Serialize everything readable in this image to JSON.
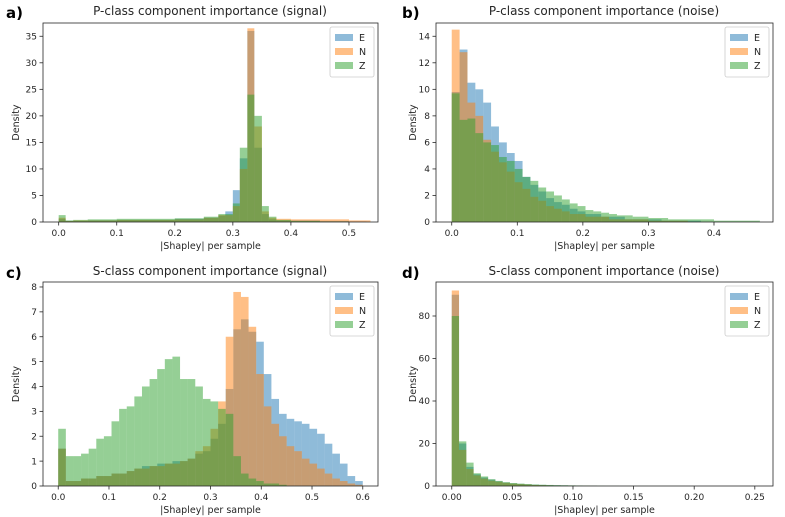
{
  "colors": {
    "E": "#1f77b4",
    "N": "#ff7f0e",
    "Z": "#2ca02c"
  },
  "chart_data": [
    {
      "type": "histogram",
      "panel_label": "a)",
      "title": "P-class component importance (signal)",
      "xlabel": "|Shapley| per sample",
      "ylabel": "Density",
      "xlim": [
        -0.027,
        0.55
      ],
      "ylim": [
        0,
        37.5
      ],
      "xticks": [
        0.0,
        0.1,
        0.2,
        0.3,
        0.4,
        0.5
      ],
      "xtick_labels": [
        "0.0",
        "0.1",
        "0.2",
        "0.3",
        "0.4",
        "0.5"
      ],
      "yticks": [
        0,
        5,
        10,
        15,
        20,
        25,
        30,
        35
      ],
      "ytick_labels": [
        "0",
        "5",
        "10",
        "15",
        "20",
        "25",
        "30",
        "35"
      ],
      "legend": {
        "position": "top-right",
        "entries": [
          "E",
          "N",
          "Z"
        ]
      },
      "series": [
        {
          "name": "E",
          "bins": [
            [
              0.0,
              0.012,
              0.6
            ],
            [
              0.012,
              0.025,
              0.2
            ],
            [
              0.025,
              0.05,
              0.2
            ],
            [
              0.05,
              0.1,
              0.3
            ],
            [
              0.1,
              0.2,
              0.4
            ],
            [
              0.2,
              0.25,
              0.6
            ],
            [
              0.25,
              0.275,
              0.8
            ],
            [
              0.275,
              0.287,
              1.2
            ],
            [
              0.287,
              0.3,
              2.0
            ],
            [
              0.3,
              0.312,
              6.0
            ],
            [
              0.312,
              0.325,
              12.0
            ],
            [
              0.325,
              0.337,
              36.0
            ],
            [
              0.337,
              0.35,
              14.0
            ],
            [
              0.35,
              0.362,
              1.5
            ],
            [
              0.362,
              0.375,
              0.5
            ],
            [
              0.375,
              0.4,
              0.3
            ],
            [
              0.4,
              0.45,
              0.3
            ],
            [
              0.45,
              0.5,
              0.2
            ],
            [
              0.5,
              0.53,
              0.1
            ]
          ]
        },
        {
          "name": "N",
          "bins": [
            [
              0.0,
              0.012,
              0.8
            ],
            [
              0.012,
              0.025,
              0.2
            ],
            [
              0.025,
              0.1,
              0.3
            ],
            [
              0.1,
              0.2,
              0.4
            ],
            [
              0.2,
              0.25,
              0.5
            ],
            [
              0.25,
              0.275,
              0.8
            ],
            [
              0.275,
              0.3,
              1.3
            ],
            [
              0.3,
              0.312,
              3.0
            ],
            [
              0.312,
              0.325,
              10.0
            ],
            [
              0.325,
              0.337,
              36.5
            ],
            [
              0.337,
              0.35,
              18.0
            ],
            [
              0.35,
              0.362,
              2.0
            ],
            [
              0.362,
              0.375,
              0.8
            ],
            [
              0.375,
              0.4,
              0.6
            ],
            [
              0.4,
              0.45,
              0.5
            ],
            [
              0.45,
              0.5,
              0.5
            ],
            [
              0.5,
              0.537,
              0.3
            ]
          ]
        },
        {
          "name": "Z",
          "bins": [
            [
              0.0,
              0.012,
              1.3
            ],
            [
              0.012,
              0.025,
              0.3
            ],
            [
              0.025,
              0.05,
              0.4
            ],
            [
              0.05,
              0.1,
              0.5
            ],
            [
              0.1,
              0.2,
              0.6
            ],
            [
              0.2,
              0.25,
              0.7
            ],
            [
              0.25,
              0.275,
              1.0
            ],
            [
              0.275,
              0.3,
              1.5
            ],
            [
              0.3,
              0.312,
              3.5
            ],
            [
              0.312,
              0.325,
              14.0
            ],
            [
              0.325,
              0.337,
              24.0
            ],
            [
              0.337,
              0.35,
              20.0
            ],
            [
              0.35,
              0.362,
              3.0
            ],
            [
              0.362,
              0.375,
              1.0
            ],
            [
              0.375,
              0.4,
              0.4
            ],
            [
              0.4,
              0.45,
              0.2
            ],
            [
              0.45,
              0.5,
              0.1
            ]
          ]
        }
      ]
    },
    {
      "type": "histogram",
      "panel_label": "b)",
      "title": "P-class component importance (noise)",
      "xlabel": "|Shapley| per sample",
      "ylabel": "Density",
      "xlim": [
        -0.024,
        0.49
      ],
      "ylim": [
        0,
        15.0
      ],
      "xticks": [
        0.0,
        0.1,
        0.2,
        0.3,
        0.4
      ],
      "xtick_labels": [
        "0.0",
        "0.1",
        "0.2",
        "0.3",
        "0.4"
      ],
      "yticks": [
        0,
        2,
        4,
        6,
        8,
        10,
        12,
        14
      ],
      "ytick_labels": [
        "0",
        "2",
        "4",
        "6",
        "8",
        "10",
        "12",
        "14"
      ],
      "legend": {
        "position": "top-right",
        "entries": [
          "E",
          "N",
          "Z"
        ]
      },
      "series": [
        {
          "name": "E",
          "bins": [
            [
              0.0,
              0.012,
              9.8
            ],
            [
              0.012,
              0.024,
              13.0
            ],
            [
              0.024,
              0.036,
              10.5
            ],
            [
              0.036,
              0.048,
              10.0
            ],
            [
              0.048,
              0.06,
              9.0
            ],
            [
              0.06,
              0.072,
              7.2
            ],
            [
              0.072,
              0.084,
              6.0
            ],
            [
              0.084,
              0.096,
              5.2
            ],
            [
              0.096,
              0.108,
              4.6
            ],
            [
              0.108,
              0.12,
              3.4
            ],
            [
              0.12,
              0.132,
              2.8
            ],
            [
              0.132,
              0.144,
              2.3
            ],
            [
              0.144,
              0.156,
              1.8
            ],
            [
              0.156,
              0.168,
              1.5
            ],
            [
              0.168,
              0.18,
              1.3
            ],
            [
              0.18,
              0.192,
              1.0
            ],
            [
              0.192,
              0.204,
              0.8
            ],
            [
              0.204,
              0.228,
              0.6
            ],
            [
              0.228,
              0.264,
              0.4
            ],
            [
              0.264,
              0.32,
              0.2
            ],
            [
              0.32,
              0.38,
              0.1
            ]
          ]
        },
        {
          "name": "N",
          "bins": [
            [
              0.0,
              0.012,
              14.5
            ],
            [
              0.012,
              0.024,
              12.8
            ],
            [
              0.024,
              0.036,
              9.0
            ],
            [
              0.036,
              0.048,
              8.0
            ],
            [
              0.048,
              0.06,
              6.2
            ],
            [
              0.06,
              0.072,
              5.3
            ],
            [
              0.072,
              0.084,
              4.5
            ],
            [
              0.084,
              0.096,
              3.8
            ],
            [
              0.096,
              0.108,
              3.0
            ],
            [
              0.108,
              0.12,
              2.5
            ],
            [
              0.12,
              0.132,
              1.9
            ],
            [
              0.132,
              0.144,
              1.6
            ],
            [
              0.144,
              0.156,
              1.2
            ],
            [
              0.156,
              0.168,
              1.0
            ],
            [
              0.168,
              0.18,
              0.8
            ],
            [
              0.18,
              0.204,
              0.6
            ],
            [
              0.204,
              0.24,
              0.4
            ],
            [
              0.24,
              0.3,
              0.2
            ],
            [
              0.3,
              0.36,
              0.1
            ]
          ]
        },
        {
          "name": "Z",
          "bins": [
            [
              0.0,
              0.012,
              9.7
            ],
            [
              0.012,
              0.024,
              7.7
            ],
            [
              0.024,
              0.036,
              7.8
            ],
            [
              0.036,
              0.048,
              6.7
            ],
            [
              0.048,
              0.06,
              6.0
            ],
            [
              0.06,
              0.072,
              5.8
            ],
            [
              0.072,
              0.084,
              4.9
            ],
            [
              0.084,
              0.096,
              4.6
            ],
            [
              0.096,
              0.108,
              4.0
            ],
            [
              0.108,
              0.12,
              3.4
            ],
            [
              0.12,
              0.132,
              3.1
            ],
            [
              0.132,
              0.144,
              2.6
            ],
            [
              0.144,
              0.156,
              2.3
            ],
            [
              0.156,
              0.168,
              2.0
            ],
            [
              0.168,
              0.18,
              1.7
            ],
            [
              0.18,
              0.192,
              1.4
            ],
            [
              0.192,
              0.204,
              1.2
            ],
            [
              0.204,
              0.216,
              0.9
            ],
            [
              0.216,
              0.228,
              0.8
            ],
            [
              0.228,
              0.24,
              0.7
            ],
            [
              0.24,
              0.252,
              0.6
            ],
            [
              0.252,
              0.276,
              0.5
            ],
            [
              0.276,
              0.3,
              0.4
            ],
            [
              0.3,
              0.33,
              0.3
            ],
            [
              0.33,
              0.4,
              0.2
            ],
            [
              0.4,
              0.47,
              0.1
            ]
          ]
        }
      ]
    },
    {
      "type": "histogram",
      "panel_label": "c)",
      "title": "S-class component importance (signal)",
      "xlabel": "|Shapley| per sample",
      "ylabel": "Density",
      "xlim": [
        -0.03,
        0.63
      ],
      "ylim": [
        0,
        8.2
      ],
      "xticks": [
        0.0,
        0.1,
        0.2,
        0.3,
        0.4,
        0.5,
        0.6
      ],
      "xtick_labels": [
        "0.0",
        "0.1",
        "0.2",
        "0.3",
        "0.4",
        "0.5",
        "0.6"
      ],
      "yticks": [
        0,
        1,
        2,
        3,
        4,
        5,
        6,
        7,
        8
      ],
      "ytick_labels": [
        "0",
        "1",
        "2",
        "3",
        "4",
        "5",
        "6",
        "7",
        "8"
      ],
      "legend": {
        "position": "top-right",
        "entries": [
          "E",
          "N",
          "Z"
        ]
      },
      "series": [
        {
          "name": "E",
          "values": [
            1.5,
            0.2,
            0.2,
            0.3,
            0.3,
            0.4,
            0.4,
            0.5,
            0.5,
            0.6,
            0.7,
            0.8,
            0.8,
            0.9,
            0.9,
            1.0,
            1.0,
            1.1,
            1.3,
            1.4,
            1.9,
            2.5,
            3.9,
            6.3,
            6.7,
            6.2,
            5.8,
            4.5,
            3.5,
            2.9,
            2.7,
            2.6,
            2.5,
            2.3,
            2.1,
            1.7,
            1.3,
            0.9,
            0.4,
            0.2
          ],
          "bin_start": 0.0,
          "bin_width": 0.015
        },
        {
          "name": "N",
          "values": [
            1.5,
            0.2,
            0.2,
            0.3,
            0.3,
            0.4,
            0.4,
            0.5,
            0.5,
            0.6,
            0.7,
            0.7,
            0.8,
            0.8,
            0.9,
            0.9,
            1.0,
            1.1,
            1.4,
            1.6,
            2.3,
            3.4,
            6.0,
            7.8,
            7.6,
            6.4,
            4.5,
            3.2,
            2.5,
            2.0,
            1.6,
            1.4,
            1.1,
            0.9,
            0.7,
            0.5,
            0.3,
            0.2,
            0.1,
            0.05
          ],
          "bin_start": 0.0,
          "bin_width": 0.015
        },
        {
          "name": "Z",
          "values": [
            2.3,
            1.2,
            1.2,
            1.3,
            1.5,
            1.9,
            2.0,
            2.6,
            3.1,
            3.2,
            3.6,
            4.0,
            4.3,
            4.7,
            5.1,
            5.2,
            4.3,
            4.3,
            4.0,
            3.5,
            3.4,
            3.1,
            2.9,
            1.2,
            0.5,
            0.3,
            0.2,
            0.1,
            0.1,
            0.05,
            0.0,
            0.0,
            0.0,
            0.0,
            0.0,
            0.0,
            0.0,
            0.0,
            0.0,
            0.0
          ],
          "bin_start": 0.0,
          "bin_width": 0.015
        }
      ]
    },
    {
      "type": "histogram",
      "panel_label": "d)",
      "title": "S-class component importance (noise)",
      "xlabel": "|Shapley| per sample",
      "ylabel": "Density",
      "xlim": [
        -0.013,
        0.265
      ],
      "ylim": [
        0,
        96
      ],
      "xticks": [
        0.0,
        0.05,
        0.1,
        0.15,
        0.2,
        0.25
      ],
      "xtick_labels": [
        "0.00",
        "0.05",
        "0.10",
        "0.15",
        "0.20",
        "0.25"
      ],
      "yticks": [
        0,
        20,
        40,
        60,
        80
      ],
      "ytick_labels": [
        "0",
        "20",
        "40",
        "60",
        "80"
      ],
      "legend": {
        "position": "top-right",
        "entries": [
          "E",
          "N",
          "Z"
        ]
      },
      "series": [
        {
          "name": "E",
          "values": [
            90,
            20,
            9,
            5.5,
            4,
            3,
            2.2,
            1.6,
            1.2,
            1.0,
            0.8,
            0.6,
            0.5,
            0.4,
            0.35,
            0.3,
            0.25,
            0.2,
            0.15,
            0.1
          ],
          "bin_start": 0.0,
          "bin_width": 0.006
        },
        {
          "name": "N",
          "values": [
            92,
            17,
            8,
            5,
            3.5,
            2.5,
            2.0,
            1.5,
            1.1,
            0.9,
            0.7,
            0.5,
            0.4,
            0.3,
            0.25,
            0.2,
            0.15,
            0.1,
            0.1,
            0.05
          ],
          "bin_start": 0.0,
          "bin_width": 0.006
        },
        {
          "name": "Z",
          "values": [
            80,
            21,
            11,
            6,
            4.5,
            3.2,
            2.4,
            1.8,
            1.4,
            1.1,
            0.9,
            0.7,
            0.6,
            0.5,
            0.4,
            0.35,
            0.3,
            0.25,
            0.2,
            0.15,
            0.12,
            0.1,
            0.08,
            0.06,
            0.05,
            0.04,
            0.03,
            0.02,
            0.02,
            0.02,
            0.02,
            0.02,
            0.01,
            0.01,
            0.01,
            0.01,
            0.01,
            0.01,
            0.01,
            0.01,
            0.01
          ],
          "bin_start": 0.0,
          "bin_width": 0.006
        }
      ]
    }
  ]
}
